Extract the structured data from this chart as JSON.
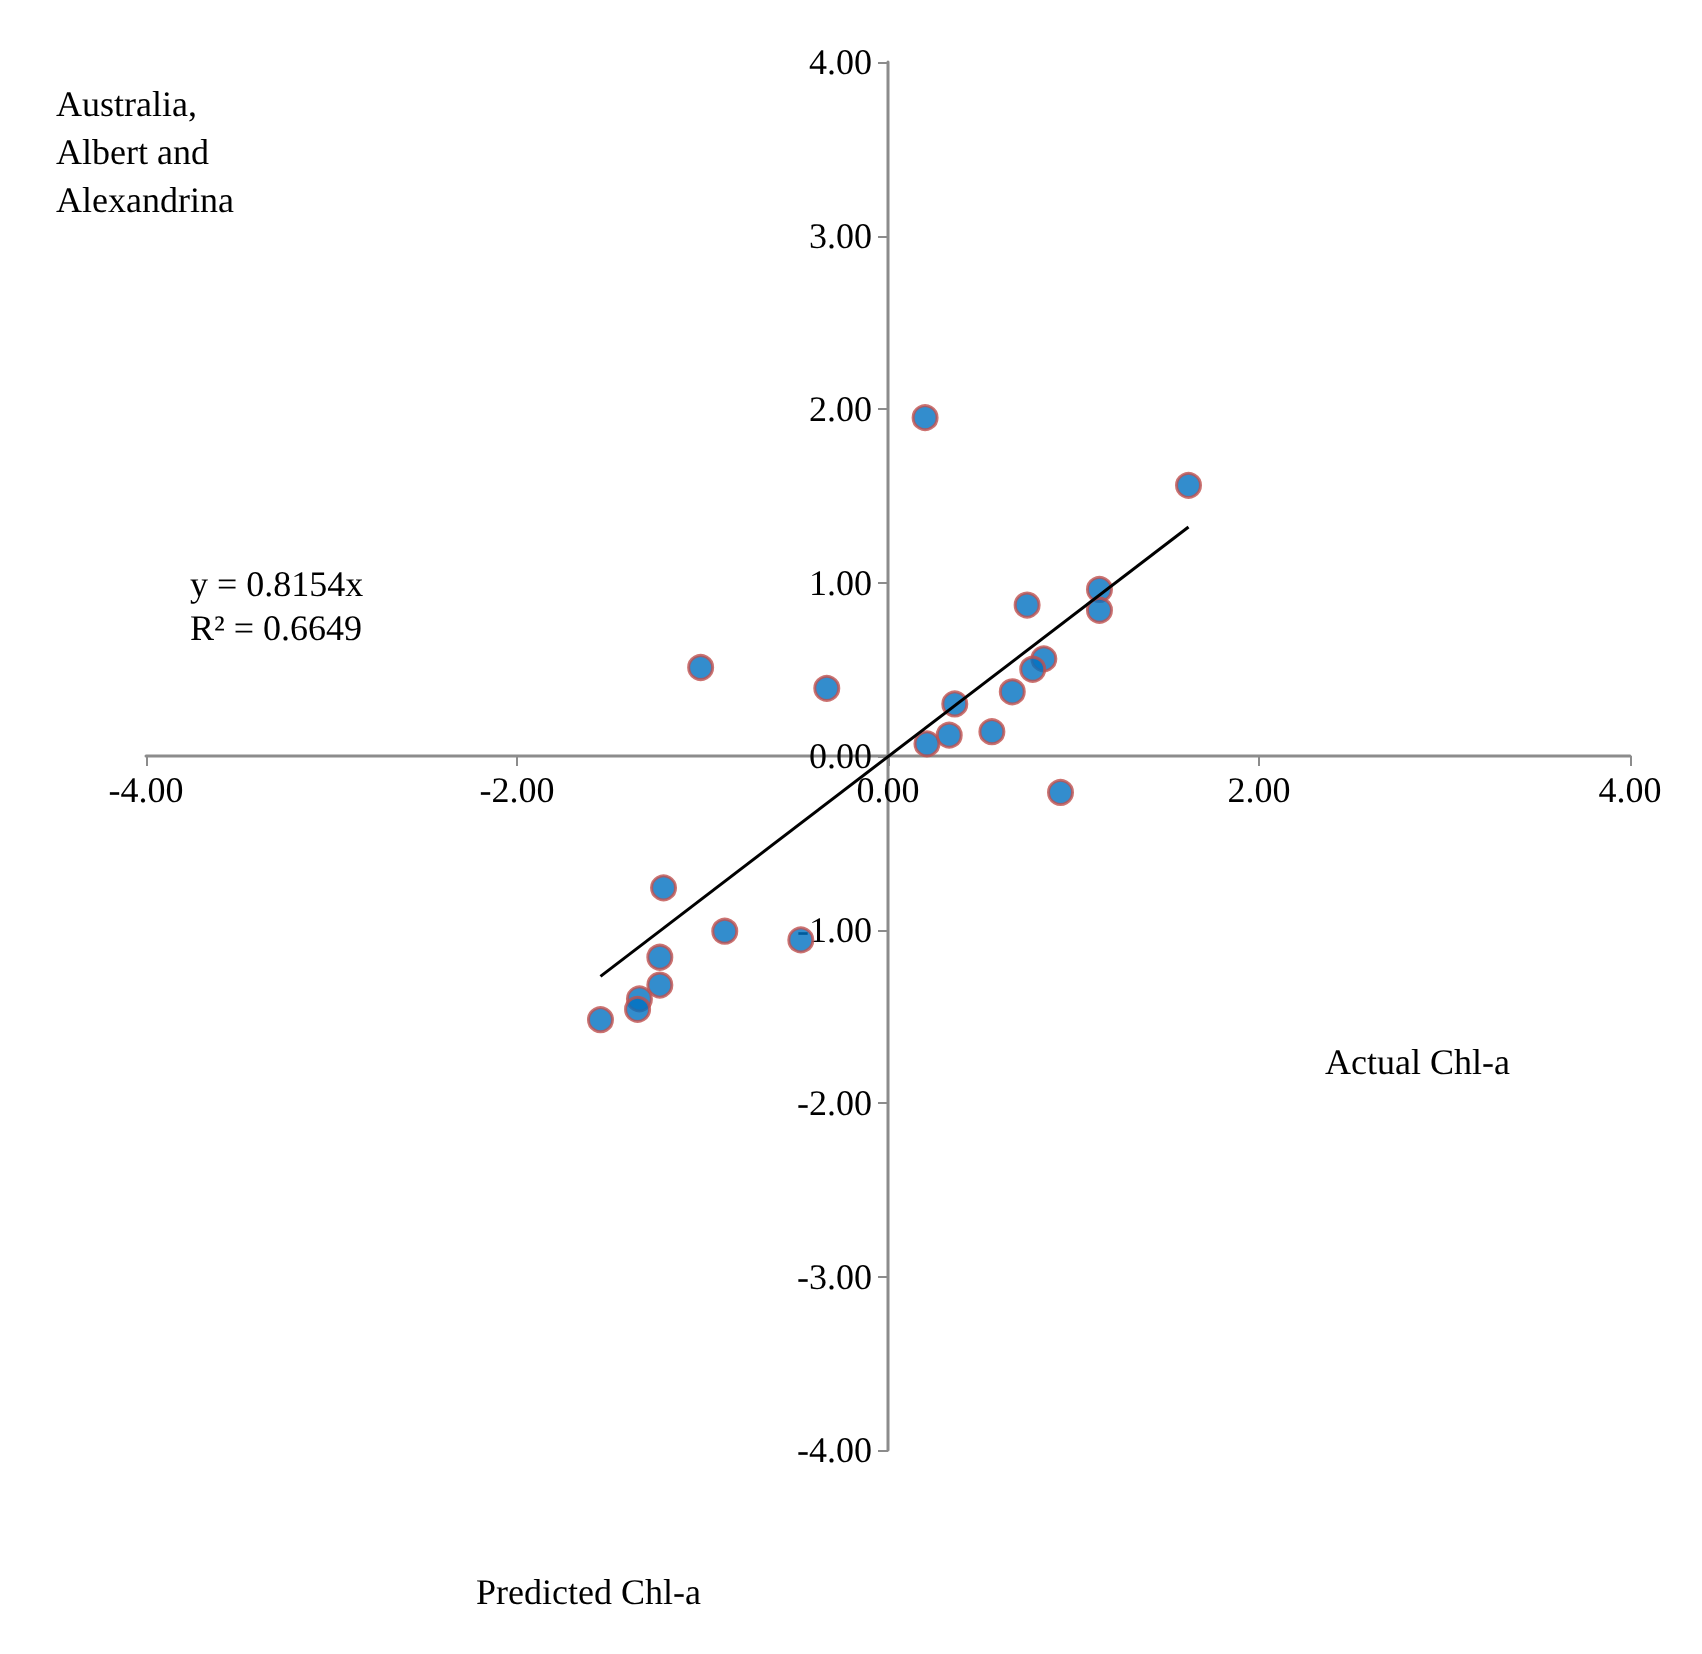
{
  "chart_data": {
    "type": "scatter",
    "title": "Australia,\nAlbert and\nAlexandrina",
    "annotations": [
      "y = 0.8154x\nR² = 0.6649",
      "Actual Chl-a",
      "Predicted Chl-a"
    ],
    "xlim": [
      -4,
      4
    ],
    "xticks": [
      {
        "value": -4,
        "label": "-4.00"
      },
      {
        "value": -2,
        "label": "-2.00"
      },
      {
        "value": 0,
        "label": "0.00"
      },
      {
        "value": 2,
        "label": "2.00"
      },
      {
        "value": 4,
        "label": "4.00"
      }
    ],
    "ylim": [
      -4,
      4
    ],
    "yticks": [
      {
        "value": -4,
        "label": "-4.00"
      },
      {
        "value": -3,
        "label": "-3.00"
      },
      {
        "value": -2,
        "label": "-2.00"
      },
      {
        "value": -1,
        "label": "-1.00"
      },
      {
        "value": 0,
        "label": "0.00"
      },
      {
        "value": 1,
        "label": "1.00"
      },
      {
        "value": 2,
        "label": "2.00"
      },
      {
        "value": 3,
        "label": "3.00"
      },
      {
        "value": 4,
        "label": "4.00"
      }
    ],
    "grid": false,
    "marker": "circle",
    "series": [
      {
        "color": "#0070c0",
        "x": [
          0.2,
          1.62,
          1.14,
          1.14,
          0.75,
          0.84,
          0.78,
          0.67,
          0.36,
          0.33,
          0.21,
          0.56,
          0.93,
          -1.01,
          -0.33,
          -1.21,
          -0.88,
          -0.47,
          -1.23,
          -1.23,
          -1.34,
          -1.35,
          -1.55
        ],
        "values": [
          1.95,
          1.56,
          0.96,
          0.84,
          0.87,
          0.56,
          0.5,
          0.37,
          0.3,
          0.12,
          0.07,
          0.14,
          -0.21,
          0.51,
          0.39,
          -0.76,
          -1.01,
          -1.06,
          -1.16,
          -1.32,
          -1.4,
          -1.46,
          -1.52
        ]
      },
      {
        "type": "line",
        "color": "#000000",
        "marker": "none",
        "x": [
          -1.55,
          1.62
        ],
        "values": [
          -1.27,
          1.32
        ]
      }
    ]
  }
}
